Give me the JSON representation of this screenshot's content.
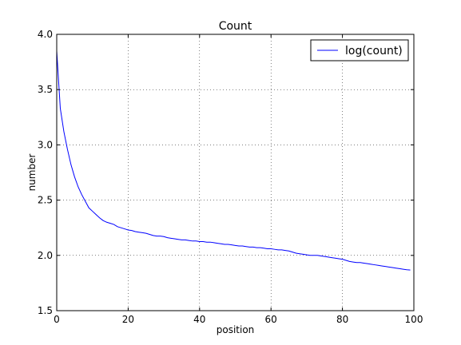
{
  "chart_data": {
    "type": "line",
    "title": "Count",
    "xlabel": "position",
    "ylabel": "number",
    "xlim": [
      0,
      100
    ],
    "ylim": [
      1.5,
      4.0
    ],
    "xticks": [
      0,
      20,
      40,
      60,
      80,
      100
    ],
    "yticks": [
      1.5,
      2.0,
      2.5,
      3.0,
      3.5,
      4.0
    ],
    "xtick_labels": [
      "0",
      "20",
      "40",
      "60",
      "80",
      "100"
    ],
    "ytick_labels": [
      "1.5",
      "2.0",
      "2.5",
      "3.0",
      "3.5",
      "4.0"
    ],
    "grid": true,
    "legend": {
      "position": "top-right"
    },
    "series": [
      {
        "name": "log(count)",
        "color": "#0000ff",
        "x": [
          0,
          1,
          2,
          3,
          4,
          5,
          6,
          7,
          8,
          9,
          10,
          11,
          12,
          13,
          14,
          15,
          16,
          17,
          18,
          19,
          20,
          21,
          22,
          23,
          24,
          25,
          26,
          27,
          28,
          29,
          30,
          31,
          32,
          33,
          34,
          35,
          36,
          37,
          38,
          39,
          40,
          41,
          42,
          43,
          44,
          45,
          46,
          47,
          48,
          49,
          50,
          51,
          52,
          53,
          54,
          55,
          56,
          57,
          58,
          59,
          60,
          61,
          62,
          63,
          64,
          65,
          66,
          67,
          68,
          69,
          70,
          71,
          72,
          73,
          74,
          75,
          76,
          77,
          78,
          79,
          80,
          81,
          82,
          83,
          84,
          85,
          86,
          87,
          88,
          89,
          90,
          91,
          92,
          93,
          94,
          95,
          96,
          97,
          98,
          99
        ],
        "values": [
          3.85,
          3.33,
          3.12,
          2.96,
          2.82,
          2.71,
          2.62,
          2.55,
          2.49,
          2.43,
          2.4,
          2.37,
          2.34,
          2.315,
          2.3,
          2.29,
          2.28,
          2.26,
          2.25,
          2.24,
          2.23,
          2.225,
          2.215,
          2.21,
          2.205,
          2.2,
          2.19,
          2.18,
          2.175,
          2.175,
          2.17,
          2.16,
          2.155,
          2.15,
          2.145,
          2.14,
          2.14,
          2.135,
          2.13,
          2.13,
          2.125,
          2.125,
          2.12,
          2.12,
          2.115,
          2.11,
          2.105,
          2.1,
          2.1,
          2.095,
          2.09,
          2.085,
          2.085,
          2.08,
          2.075,
          2.075,
          2.07,
          2.07,
          2.065,
          2.06,
          2.06,
          2.055,
          2.05,
          2.05,
          2.045,
          2.04,
          2.03,
          2.02,
          2.015,
          2.01,
          2.005,
          2.0,
          2.0,
          2.0,
          1.995,
          1.99,
          1.985,
          1.98,
          1.975,
          1.97,
          1.965,
          1.955,
          1.945,
          1.94,
          1.935,
          1.935,
          1.93,
          1.925,
          1.92,
          1.915,
          1.91,
          1.905,
          1.9,
          1.895,
          1.89,
          1.885,
          1.88,
          1.875,
          1.87,
          1.868
        ]
      }
    ]
  }
}
